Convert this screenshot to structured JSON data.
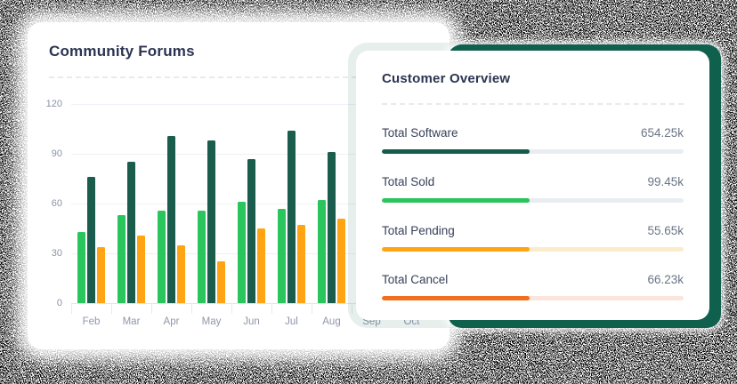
{
  "chart_data": {
    "type": "bar",
    "title": "Community Forums",
    "categories": [
      "Feb",
      "Mar",
      "Apr",
      "May",
      "Jun",
      "Jul",
      "Aug",
      "Sep",
      "Oct"
    ],
    "series": [
      {
        "name": "light-green",
        "color": "#2bc55e",
        "values": [
          43,
          53,
          56,
          56,
          61,
          57,
          62,
          null,
          null
        ]
      },
      {
        "name": "dark-green",
        "color": "#1b5d4c",
        "values": [
          76,
          85,
          101,
          98,
          87,
          104,
          91,
          null,
          null
        ]
      },
      {
        "name": "orange",
        "color": "#ffa412",
        "values": [
          34,
          41,
          35,
          25,
          45,
          47,
          51,
          null,
          null
        ]
      }
    ],
    "ylim": [
      0,
      120
    ],
    "yticks": [
      0,
      30,
      60,
      90,
      120
    ],
    "grid": "horizontal",
    "legend": "none",
    "note": "Sep and Oct columns are hidden behind the overlapping Customer Overview card"
  },
  "right_card": {
    "title": "Customer Overview",
    "rows": [
      {
        "id": "total-software",
        "label": "Total Software",
        "value": "654.25k",
        "percent": 49,
        "bar_color": "#155c4b",
        "track_color": "#e9edf2"
      },
      {
        "id": "total-sold",
        "label": "Total Sold",
        "value": "99.45k",
        "percent": 49,
        "bar_color": "#2bc55e",
        "track_color": "#e9edf2"
      },
      {
        "id": "total-pending",
        "label": "Total Pending",
        "value": "55.65k",
        "percent": 49,
        "bar_color": "#ffa412",
        "track_color": "#fbeccb"
      },
      {
        "id": "total-cancel",
        "label": "Total Cancel",
        "value": "66.23k",
        "percent": 49,
        "bar_color": "#f2701d",
        "track_color": "#fbe5dc"
      }
    ]
  },
  "colors": {
    "title_text": "#2b3452",
    "axis_text": "#8b93a7",
    "backing_card_green": "#10604e"
  }
}
